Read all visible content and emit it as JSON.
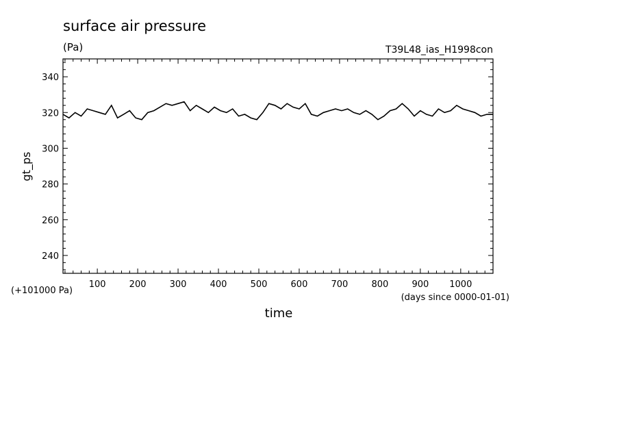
{
  "chart_data": {
    "type": "line",
    "title": "surface air pressure",
    "units": "(Pa)",
    "run_label": "T39L48_ias_H1998con",
    "xlabel": "time",
    "x_units": "(days since 0000-01-01)",
    "ylabel": "gt_ps",
    "y_offset_label": "(+101000 Pa)",
    "xlim": [
      15,
      1080
    ],
    "ylim": [
      230,
      350
    ],
    "x_ticks": [
      100,
      200,
      300,
      400,
      500,
      600,
      700,
      800,
      900,
      1000
    ],
    "y_ticks": [
      240,
      260,
      280,
      300,
      320,
      340
    ],
    "grid": false,
    "series": [
      {
        "x": [
          15,
          30,
          45,
          60,
          75,
          90,
          105,
          120,
          135,
          150,
          165,
          180,
          195,
          210,
          225,
          240,
          255,
          270,
          285,
          300,
          315,
          330,
          345,
          360,
          375,
          390,
          405,
          420,
          435,
          450,
          465,
          480,
          495,
          510,
          525,
          540,
          555,
          570,
          585,
          600,
          615,
          630,
          645,
          660,
          675,
          690,
          705,
          720,
          735,
          750,
          765,
          780,
          795,
          810,
          825,
          840,
          855,
          870,
          885,
          900,
          915,
          930,
          945,
          960,
          975,
          990,
          1005,
          1020,
          1035,
          1050,
          1065,
          1080
        ],
        "y": [
          319,
          317,
          320,
          318,
          322,
          321,
          320,
          319,
          324,
          317,
          319,
          321,
          317,
          316,
          320,
          321,
          323,
          325,
          324,
          325,
          326,
          321,
          324,
          322,
          320,
          323,
          321,
          320,
          322,
          318,
          319,
          317,
          316,
          320,
          325,
          324,
          322,
          325,
          323,
          322,
          325,
          319,
          318,
          320,
          321,
          322,
          321,
          322,
          320,
          319,
          321,
          319,
          316,
          318,
          321,
          322,
          325,
          322,
          318,
          321,
          319,
          318,
          322,
          320,
          321,
          324,
          322,
          321,
          320,
          318,
          319,
          319
        ]
      }
    ]
  }
}
